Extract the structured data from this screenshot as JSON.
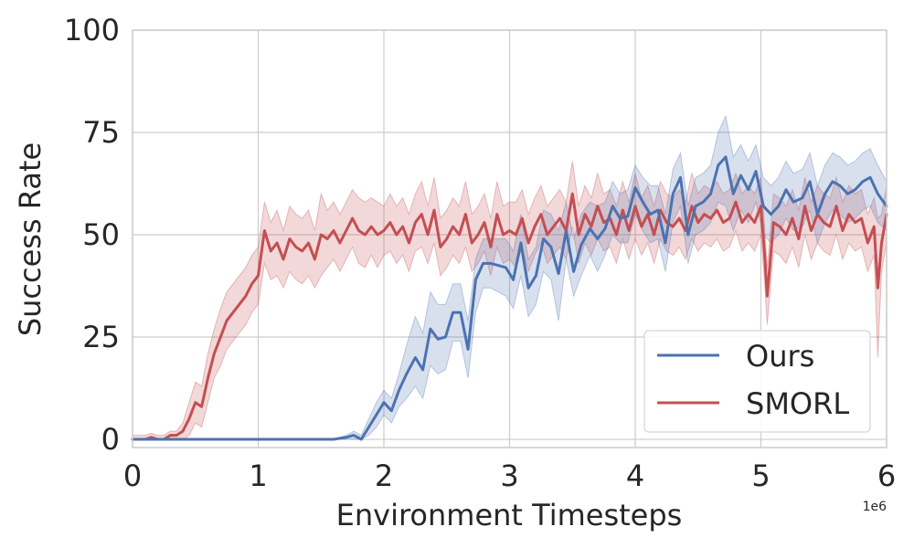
{
  "chart_data": {
    "type": "line",
    "title": "",
    "xlabel": "Environment Timesteps",
    "ylabel": "Success Rate",
    "x_offset_label": "1e6",
    "xlim": [
      0,
      6
    ],
    "ylim": [
      -2,
      100
    ],
    "x_ticks": [
      0,
      1,
      2,
      3,
      4,
      5,
      6
    ],
    "x_tick_labels": [
      "0",
      "1",
      "2",
      "3",
      "4",
      "5",
      "6"
    ],
    "y_ticks": [
      0,
      25,
      50,
      75,
      100
    ],
    "y_tick_labels": [
      "0",
      "25",
      "50",
      "75",
      "100"
    ],
    "grid": true,
    "legend_position": "lower-right",
    "series": [
      {
        "name": "Ours",
        "color": "#4C72B0",
        "x": [
          0,
          0.1,
          0.2,
          0.3,
          0.4,
          0.5,
          0.6,
          0.7,
          0.8,
          0.9,
          1.0,
          1.1,
          1.2,
          1.3,
          1.4,
          1.5,
          1.6,
          1.7,
          1.76,
          1.82,
          1.88,
          1.94,
          2.0,
          2.06,
          2.12,
          2.18,
          2.25,
          2.31,
          2.37,
          2.43,
          2.49,
          2.55,
          2.61,
          2.67,
          2.73,
          2.79,
          2.85,
          2.91,
          2.97,
          3.03,
          3.09,
          3.15,
          3.21,
          3.27,
          3.33,
          3.39,
          3.45,
          3.51,
          3.57,
          3.64,
          3.7,
          3.76,
          3.82,
          3.88,
          3.94,
          4.0,
          4.06,
          4.12,
          4.18,
          4.24,
          4.3,
          4.36,
          4.42,
          4.48,
          4.54,
          4.6,
          4.66,
          4.72,
          4.78,
          4.84,
          4.9,
          4.96,
          5.02,
          5.08,
          5.14,
          5.2,
          5.26,
          5.33,
          5.39,
          5.45,
          5.51,
          5.57,
          5.63,
          5.69,
          5.75,
          5.81,
          5.87,
          5.93,
          6.0
        ],
        "values": [
          0,
          0,
          0,
          0,
          0,
          0,
          0,
          0,
          0,
          0,
          0,
          0,
          0,
          0,
          0,
          0,
          0,
          0.5,
          1,
          0,
          3,
          6,
          9,
          7,
          12,
          16,
          20,
          17,
          27,
          24.5,
          25,
          31,
          31,
          22,
          39,
          43,
          43,
          42.5,
          42,
          39,
          48,
          37,
          40,
          49,
          47,
          40.5,
          51,
          41,
          47.5,
          51.5,
          49,
          51.5,
          57,
          54,
          54.5,
          61.5,
          58,
          55,
          56,
          48,
          60,
          64,
          50,
          57,
          58,
          60,
          67,
          69,
          60,
          64.5,
          61,
          65.5,
          57,
          55,
          57,
          61,
          58,
          59,
          63,
          55,
          60,
          63,
          62,
          60,
          61,
          63,
          64,
          60,
          57
        ],
        "band_low": [
          0,
          0,
          0,
          0,
          0,
          0,
          0,
          0,
          0,
          0,
          0,
          0,
          0,
          0,
          0,
          0,
          0,
          0,
          0,
          0,
          1,
          3,
          6,
          4,
          8,
          10,
          13,
          10,
          18,
          16,
          17,
          24,
          24,
          15,
          31,
          37,
          37,
          36,
          35,
          32,
          40,
          30,
          33,
          41,
          39,
          29,
          44,
          35,
          40,
          45,
          41,
          45,
          50,
          48,
          48,
          55,
          51,
          48,
          49,
          41,
          53,
          57,
          43,
          50,
          51,
          53,
          58,
          57,
          51,
          56,
          53,
          58,
          50,
          48,
          50,
          54,
          51,
          52,
          56,
          48,
          53,
          56,
          55,
          53,
          54,
          56,
          57,
          53,
          51
        ],
        "band_high": [
          0,
          0,
          0,
          0,
          0,
          0,
          0,
          0,
          0,
          0,
          0,
          0,
          0,
          0,
          0,
          0,
          0,
          1,
          2,
          1,
          5,
          9,
          12,
          10,
          16,
          23,
          30,
          26,
          36,
          33,
          33,
          38,
          38,
          29,
          44,
          49,
          49,
          49,
          49,
          46,
          55,
          44,
          47,
          56,
          55,
          51,
          58,
          49,
          55,
          58,
          57,
          58,
          63,
          60,
          61,
          67,
          64,
          62,
          62,
          55,
          66,
          70,
          57,
          64,
          65,
          67,
          75,
          79,
          69,
          72,
          68,
          72,
          64,
          62,
          64,
          68,
          65,
          66,
          70,
          62,
          67,
          70,
          69,
          67,
          68,
          70,
          71,
          67,
          63
        ]
      },
      {
        "name": "SMORL",
        "color": "#C44E52",
        "x": [
          0,
          0.05,
          0.1,
          0.15,
          0.2,
          0.25,
          0.3,
          0.35,
          0.4,
          0.45,
          0.5,
          0.55,
          0.6,
          0.65,
          0.7,
          0.75,
          0.8,
          0.85,
          0.9,
          0.95,
          1.0,
          1.05,
          1.1,
          1.15,
          1.2,
          1.25,
          1.3,
          1.35,
          1.4,
          1.45,
          1.5,
          1.55,
          1.6,
          1.65,
          1.7,
          1.75,
          1.8,
          1.85,
          1.9,
          1.95,
          2.0,
          2.05,
          2.1,
          2.15,
          2.2,
          2.25,
          2.3,
          2.35,
          2.4,
          2.45,
          2.5,
          2.55,
          2.6,
          2.65,
          2.7,
          2.75,
          2.8,
          2.85,
          2.9,
          2.95,
          3.0,
          3.05,
          3.1,
          3.15,
          3.2,
          3.25,
          3.3,
          3.35,
          3.4,
          3.45,
          3.5,
          3.55,
          3.6,
          3.65,
          3.7,
          3.75,
          3.8,
          3.85,
          3.9,
          3.95,
          4.0,
          4.05,
          4.1,
          4.15,
          4.2,
          4.25,
          4.3,
          4.35,
          4.4,
          4.45,
          4.5,
          4.55,
          4.6,
          4.65,
          4.7,
          4.75,
          4.8,
          4.85,
          4.9,
          4.95,
          5.0,
          5.03,
          5.05,
          5.1,
          5.15,
          5.2,
          5.25,
          5.3,
          5.35,
          5.4,
          5.45,
          5.5,
          5.55,
          5.6,
          5.65,
          5.7,
          5.75,
          5.8,
          5.85,
          5.9,
          5.93,
          5.96,
          6.0
        ],
        "values": [
          0,
          0,
          0,
          0.5,
          0,
          0,
          1,
          1,
          2,
          5,
          9,
          8,
          15,
          21,
          25,
          29,
          31,
          33,
          35,
          38,
          40,
          51,
          46,
          48,
          44,
          49,
          47,
          46,
          48,
          44,
          50,
          49,
          51,
          48,
          51,
          54,
          51,
          50,
          52,
          50,
          51,
          53,
          50,
          52,
          48,
          53,
          55,
          50,
          56,
          47,
          49,
          52,
          50,
          55,
          48,
          50,
          53,
          47,
          55,
          50,
          51,
          50,
          54,
          48,
          52,
          55,
          50,
          52,
          54,
          51,
          60,
          50,
          55,
          52,
          57,
          53,
          54,
          50,
          56,
          51,
          57,
          52,
          55,
          50,
          56,
          53,
          52,
          54,
          51,
          57,
          53,
          55,
          54,
          56,
          53,
          54,
          58,
          53,
          55,
          53,
          57,
          45,
          35,
          53,
          52,
          50,
          54,
          49,
          57,
          51,
          55,
          53,
          52,
          57,
          51,
          55,
          53,
          54,
          48,
          52,
          37,
          48,
          55
        ],
        "band_low": [
          0,
          0,
          0,
          0,
          0,
          0,
          0,
          0,
          0,
          1,
          4,
          3,
          9,
          15,
          18,
          22,
          24,
          26,
          28,
          31,
          33,
          43,
          39,
          40,
          37,
          41,
          39,
          38,
          40,
          37,
          40,
          42,
          44,
          41,
          44,
          47,
          43,
          42,
          45,
          42,
          45,
          46,
          43,
          45,
          41,
          46,
          47,
          43,
          48,
          40,
          42,
          45,
          43,
          47,
          41,
          43,
          46,
          40,
          47,
          43,
          44,
          42,
          47,
          41,
          45,
          48,
          43,
          45,
          47,
          44,
          52,
          43,
          48,
          45,
          49,
          46,
          47,
          43,
          49,
          44,
          49,
          45,
          48,
          43,
          49,
          46,
          45,
          47,
          44,
          49,
          46,
          48,
          47,
          49,
          46,
          47,
          51,
          46,
          48,
          46,
          50,
          38,
          28,
          46,
          45,
          43,
          47,
          42,
          50,
          44,
          48,
          46,
          45,
          50,
          44,
          48,
          46,
          47,
          41,
          45,
          20,
          41,
          48
        ],
        "band_high": [
          1,
          1,
          1,
          1.5,
          1,
          1,
          2,
          2,
          4,
          9,
          14,
          13,
          21,
          27,
          32,
          36,
          38,
          40,
          42,
          45,
          47,
          58,
          53,
          56,
          51,
          57,
          55,
          54,
          56,
          51,
          60,
          56,
          58,
          55,
          58,
          61,
          59,
          58,
          59,
          58,
          57,
          60,
          57,
          59,
          55,
          60,
          63,
          57,
          64,
          54,
          56,
          59,
          57,
          63,
          55,
          57,
          60,
          54,
          63,
          57,
          58,
          58,
          61,
          55,
          59,
          62,
          57,
          59,
          61,
          58,
          68,
          57,
          62,
          59,
          65,
          60,
          61,
          57,
          63,
          58,
          65,
          59,
          62,
          57,
          63,
          60,
          59,
          61,
          58,
          65,
          60,
          62,
          61,
          63,
          60,
          61,
          65,
          60,
          62,
          60,
          64,
          52,
          42,
          60,
          59,
          57,
          61,
          56,
          64,
          58,
          62,
          60,
          59,
          64,
          58,
          62,
          60,
          61,
          55,
          59,
          54,
          55,
          62
        ]
      }
    ]
  }
}
